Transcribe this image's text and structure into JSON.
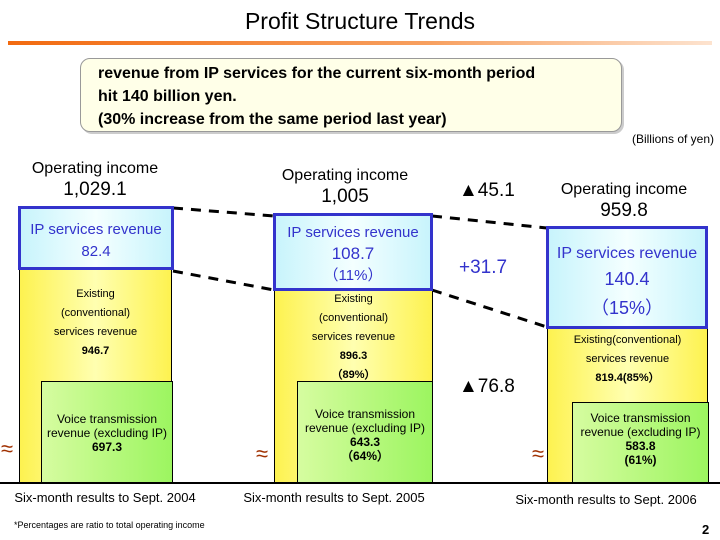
{
  "title": "Profit Structure Trends",
  "callout": {
    "lines": [
      "revenue from IP services for the current six-month period",
      "hit 140 billion yen.",
      "(30% increase from the same period last year)"
    ]
  },
  "unit": "(Billions of yen)",
  "colors": {
    "ip_border": "#3333cc",
    "existing": "#fdf250",
    "voice": "#9cf560",
    "accent": "#f26a10"
  },
  "periods": [
    {
      "label": "Six-month results to Sept. 2004",
      "op_label": "Operating income",
      "op_value": "1,029.1",
      "ip_title": "IP services revenue",
      "ip_value": "82.4",
      "ip_pct": "",
      "existing_lines": [
        "Existing",
        "(conventional)",
        "services revenue",
        "946.7",
        ""
      ],
      "voice_lines": [
        "Voice transmission",
        "revenue (excluding IP)",
        "697.3",
        ""
      ]
    },
    {
      "label": "Six-month results to Sept. 2005",
      "op_label": "Operating income",
      "op_value": "1,005",
      "ip_title": "IP services revenue",
      "ip_value": "108.7",
      "ip_pct": "（11%）",
      "existing_lines": [
        "Existing",
        "(conventional)",
        "services revenue",
        "896.3",
        "（89%）"
      ],
      "voice_lines": [
        "Voice transmission",
        "revenue (excluding IP)",
        "643.3",
        "（64%）"
      ]
    },
    {
      "label": "Six-month results to Sept. 2006",
      "op_label": "Operating income",
      "op_value": "959.8",
      "ip_title": "IP services revenue",
      "ip_value": "140.4",
      "ip_pct": "（15%）",
      "existing_lines": [
        "Existing(conventional)",
        "services revenue",
        "819.4(85%）"
      ],
      "voice_lines": [
        "Voice transmission",
        "revenue (excluding IP)",
        "583.8",
        "(61%)"
      ]
    }
  ],
  "deltas": {
    "operating": "▲45.1",
    "ip": "+31.7",
    "existing": "▲76.8"
  },
  "footnote": "*Percentages are ratio to total operating income",
  "page_number": "2",
  "chart_data": {
    "type": "bar",
    "stacked": true,
    "categories": [
      "Six-month results to Sept. 2004",
      "Six-month results to Sept. 2005",
      "Six-month results to Sept. 2006"
    ],
    "series": [
      {
        "name": "IP services revenue",
        "values": [
          82.4,
          108.7,
          140.4
        ]
      },
      {
        "name": "Existing (conventional) services revenue",
        "values": [
          946.7,
          896.3,
          819.4
        ]
      },
      {
        "name": "Voice transmission revenue (excluding IP)",
        "values": [
          697.3,
          643.3,
          583.8
        ]
      }
    ],
    "totals": {
      "name": "Operating income",
      "values": [
        1029.1,
        1005,
        959.8
      ]
    },
    "ylabel": "(Billions of yen)",
    "axis_break": true
  }
}
